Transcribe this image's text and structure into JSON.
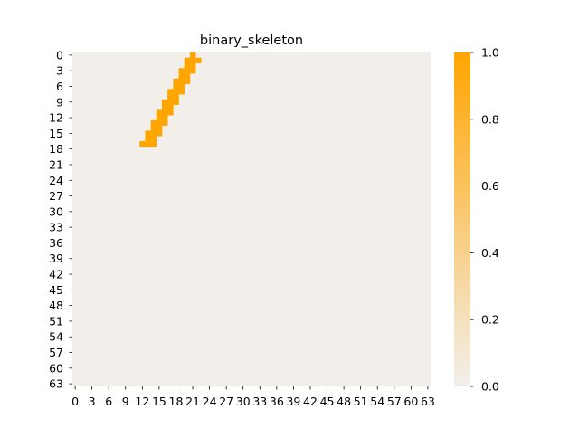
{
  "chart_data": {
    "type": "heatmap",
    "title": "binary_skeleton",
    "xlabel": "",
    "ylabel": "",
    "shape": [
      64,
      64
    ],
    "x_tick_labels": [
      "0",
      "3",
      "6",
      "9",
      "12",
      "15",
      "18",
      "21",
      "24",
      "27",
      "30",
      "33",
      "36",
      "39",
      "42",
      "45",
      "48",
      "51",
      "54",
      "57",
      "60",
      "63"
    ],
    "y_tick_labels": [
      "0",
      "3",
      "6",
      "9",
      "12",
      "15",
      "18",
      "21",
      "24",
      "27",
      "30",
      "33",
      "36",
      "39",
      "42",
      "45",
      "48",
      "51",
      "54",
      "57",
      "60",
      "63"
    ],
    "colorbar": {
      "min": 0.0,
      "max": 1.0,
      "tick_labels": [
        "0.0",
        "0.2",
        "0.4",
        "0.6",
        "0.8",
        "1.0"
      ],
      "color_low": "#f2efeb",
      "color_high": "#ffa500"
    },
    "background_value": 0,
    "cells_value_1": [
      {
        "row": 0,
        "cols": [
          21
        ]
      },
      {
        "row": 1,
        "cols": [
          20,
          21,
          22
        ]
      },
      {
        "row": 2,
        "cols": [
          20,
          21
        ]
      },
      {
        "row": 3,
        "cols": [
          19,
          20,
          21
        ]
      },
      {
        "row": 4,
        "cols": [
          19,
          20
        ]
      },
      {
        "row": 5,
        "cols": [
          18,
          19,
          20
        ]
      },
      {
        "row": 6,
        "cols": [
          18,
          19
        ]
      },
      {
        "row": 7,
        "cols": [
          17,
          18,
          19
        ]
      },
      {
        "row": 8,
        "cols": [
          17,
          18
        ]
      },
      {
        "row": 9,
        "cols": [
          16,
          17,
          18
        ]
      },
      {
        "row": 10,
        "cols": [
          16,
          17
        ]
      },
      {
        "row": 11,
        "cols": [
          15,
          16,
          17
        ]
      },
      {
        "row": 12,
        "cols": [
          15,
          16
        ]
      },
      {
        "row": 13,
        "cols": [
          14,
          15,
          16
        ]
      },
      {
        "row": 14,
        "cols": [
          14,
          15
        ]
      },
      {
        "row": 15,
        "cols": [
          13,
          14,
          15
        ]
      },
      {
        "row": 16,
        "cols": [
          13,
          14
        ]
      },
      {
        "row": 17,
        "cols": [
          12,
          13,
          14
        ]
      }
    ]
  }
}
